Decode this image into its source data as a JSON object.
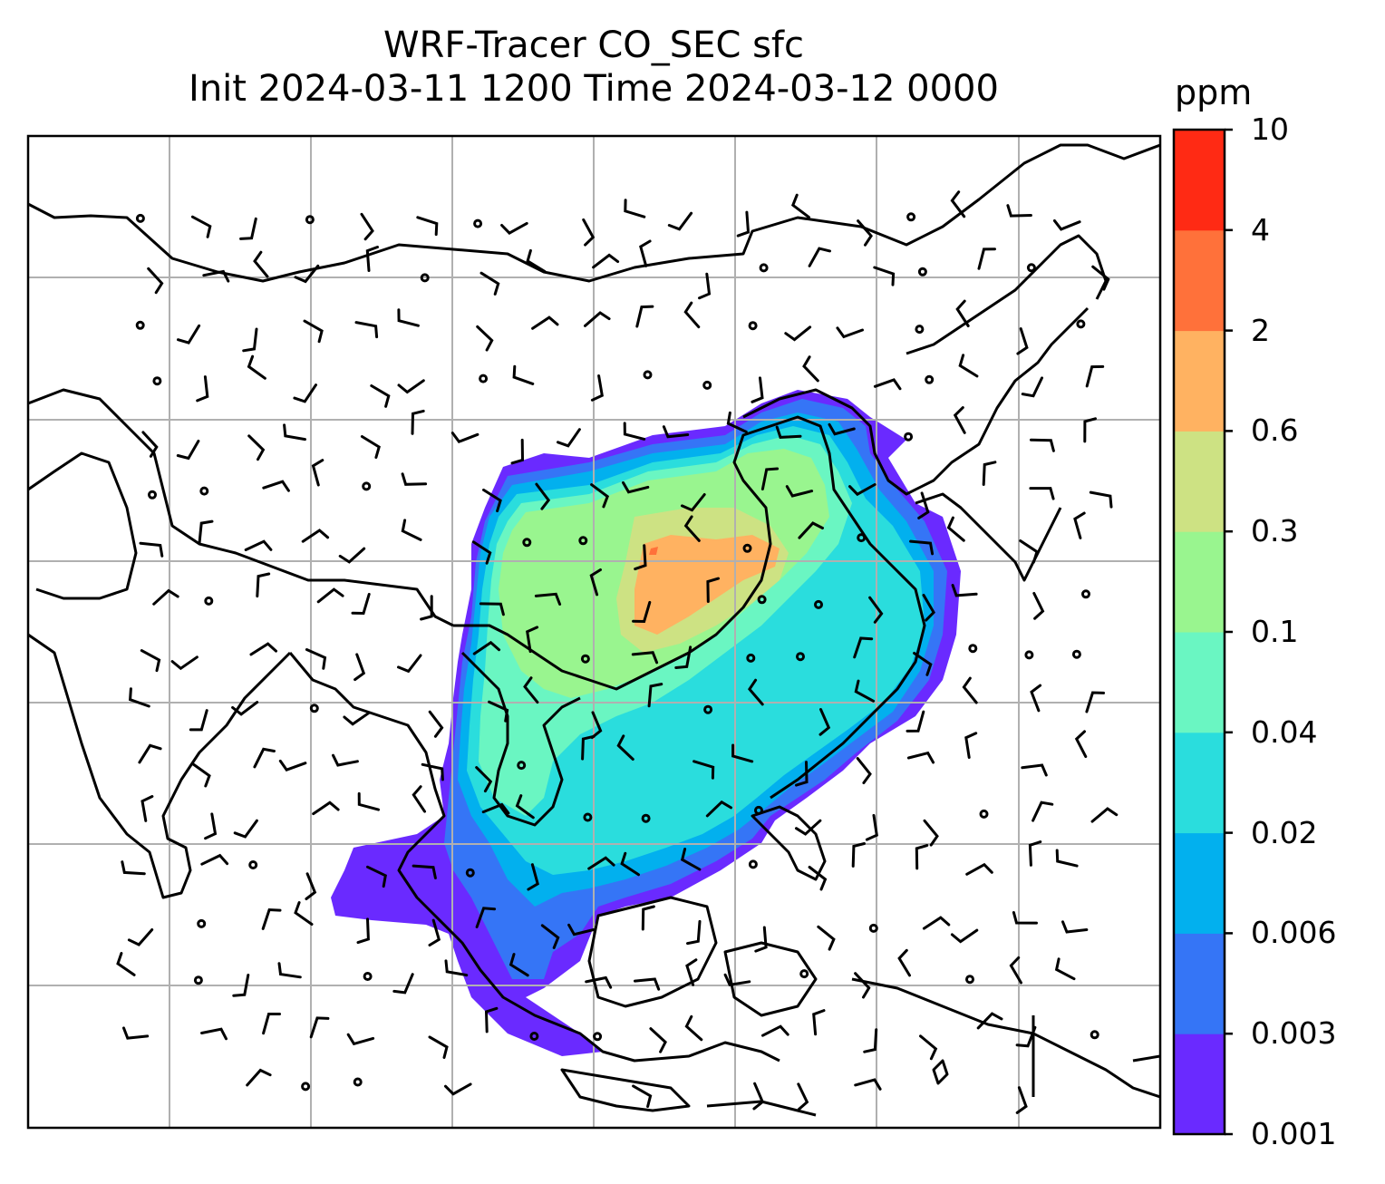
{
  "title": {
    "line1": "WRF-Tracer CO_SEC sfc",
    "line2": "Init 2024-03-11 1200 Time 2024-03-12 0000"
  },
  "colorbar": {
    "unit": "ppm",
    "levels": [
      "0.001",
      "0.003",
      "0.006",
      "0.02",
      "0.04",
      "0.1",
      "0.3",
      "0.6",
      "2",
      "4",
      "10"
    ],
    "colors": [
      "#6a2aff",
      "#3575f6",
      "#02b0ee",
      "#2adddd",
      "#6af6c2",
      "#99f58f",
      "#cde283",
      "#ffb261",
      "#ff713a",
      "#ff2a14"
    ]
  },
  "map": {
    "field": "CO_SEC surface tracer concentration",
    "grid": "on",
    "overlay": "wind barbs",
    "coastline_color": "#000000",
    "gridline_color": "#b0b0b0"
  }
}
